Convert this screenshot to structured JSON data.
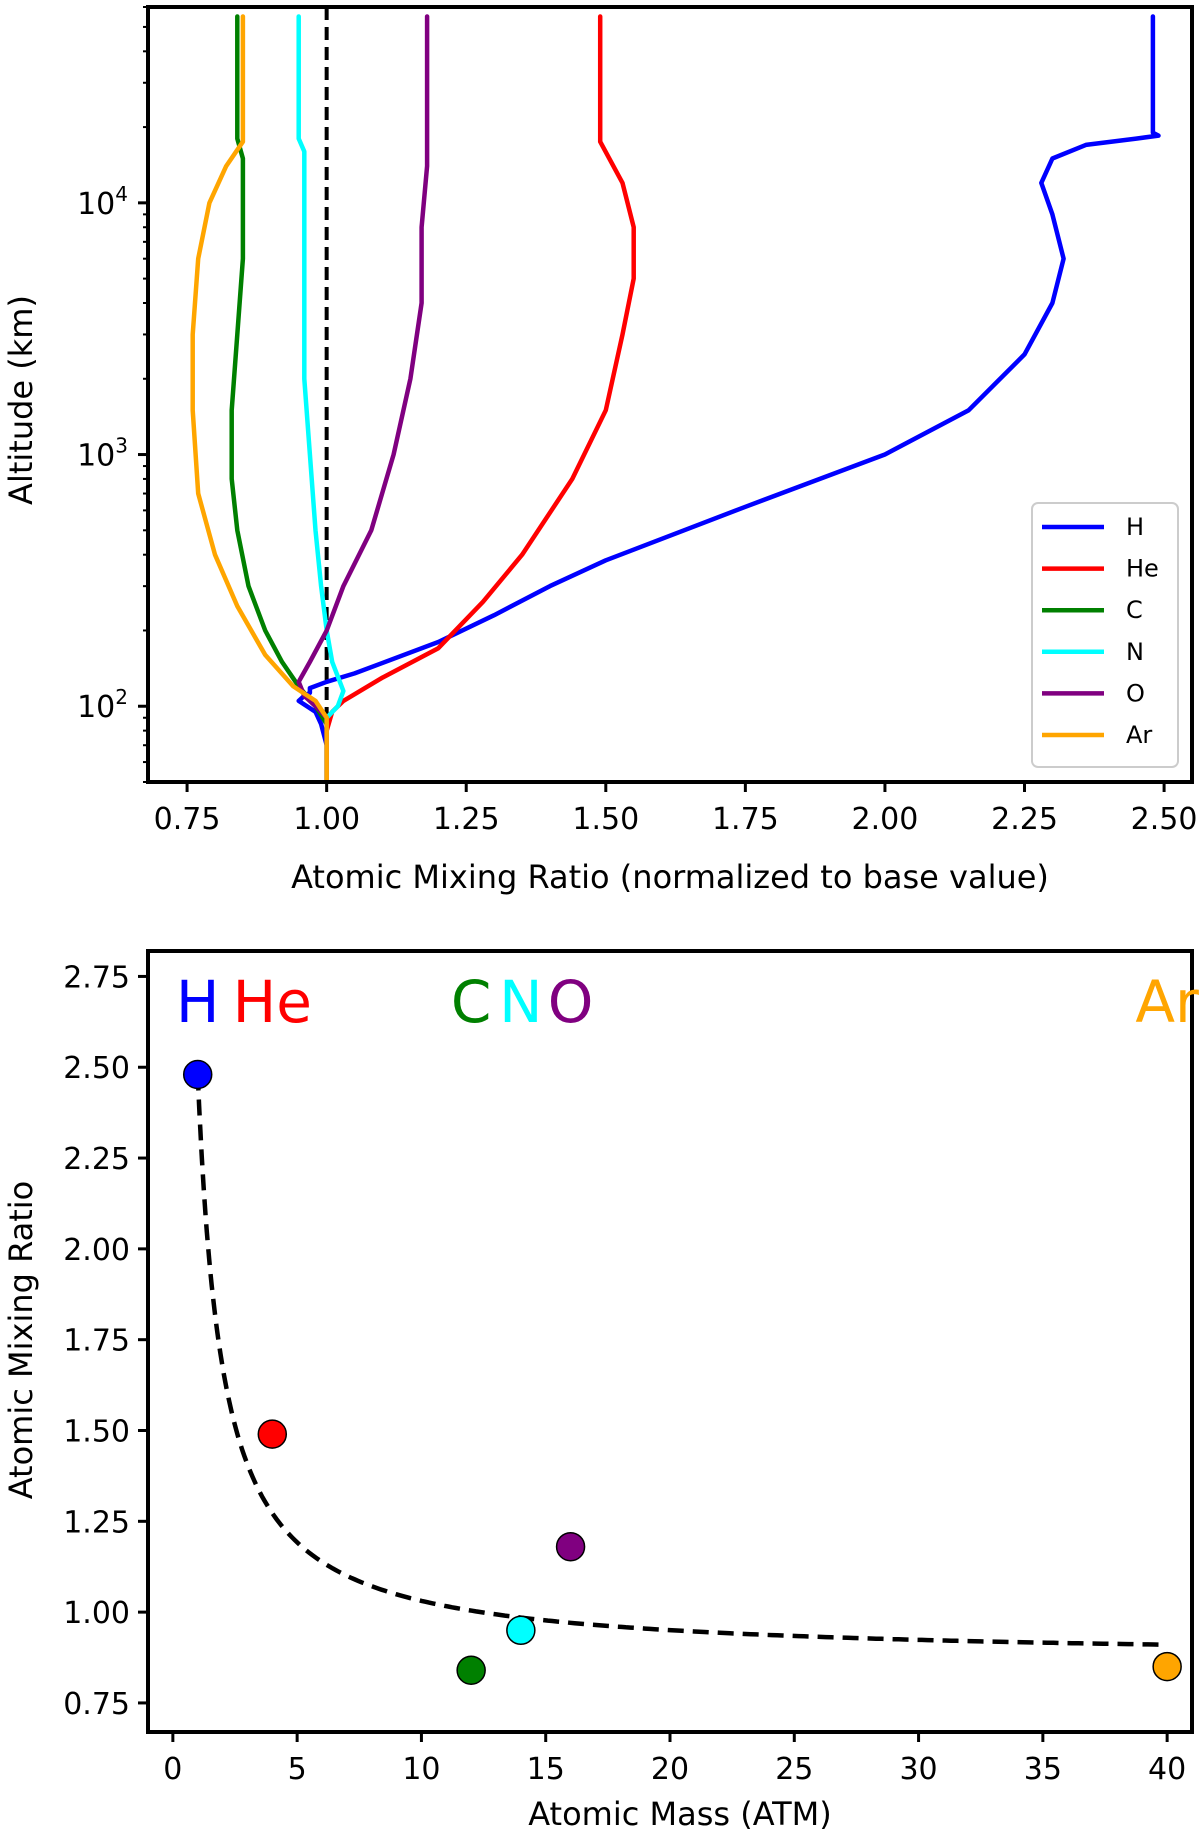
{
  "chart_data": [
    {
      "type": "line",
      "xlabel": "Atomic Mixing Ratio (normalized to base value)",
      "ylabel": "Altitude (km)",
      "xlim": [
        0.68,
        2.55
      ],
      "ylim": [
        50,
        60000
      ],
      "yscale": "log",
      "xticks": [
        "0.75",
        "1.00",
        "1.25",
        "1.50",
        "1.75",
        "2.00",
        "2.25",
        "2.50"
      ],
      "xtick_values": [
        0.75,
        1.0,
        1.25,
        1.5,
        1.75,
        2.0,
        2.25,
        2.5
      ],
      "yticks": [
        {
          "value": 100,
          "base": "10",
          "exp": "2"
        },
        {
          "value": 1000,
          "base": "10",
          "exp": "3"
        },
        {
          "value": 10000,
          "base": "10",
          "exp": "4"
        }
      ],
      "legend_position": "lower-right",
      "reference_line": {
        "x": 1.0,
        "style": "dashed",
        "color": "#000000"
      },
      "series": [
        {
          "name": "H",
          "color": "#0000ff",
          "x": [
            1.0,
            1.0,
            0.99,
            0.98,
            0.95,
            0.96,
            0.97,
            0.97,
            1.0,
            1.05,
            1.2,
            1.3,
            1.4,
            1.5,
            1.75,
            2.0,
            2.15,
            2.25,
            2.3,
            2.32,
            2.3,
            2.28,
            2.3,
            2.36,
            2.45,
            2.49,
            2.48,
            2.48
          ],
          "y": [
            50,
            70,
            85,
            95,
            105,
            110,
            113,
            118,
            125,
            135,
            180,
            230,
            300,
            380,
            620,
            1000,
            1500,
            2500,
            4000,
            6000,
            9000,
            12000,
            15000,
            17000,
            18000,
            18500,
            19000,
            55000
          ]
        },
        {
          "name": "He",
          "color": "#ff0000",
          "x": [
            1.0,
            1.0,
            1.01,
            1.03,
            1.1,
            1.2,
            1.28,
            1.35,
            1.44,
            1.5,
            1.53,
            1.55,
            1.55,
            1.53,
            1.49,
            1.49,
            1.49
          ],
          "y": [
            50,
            80,
            95,
            105,
            130,
            170,
            260,
            400,
            800,
            1500,
            3000,
            5000,
            8000,
            12000,
            17500,
            19000,
            55000
          ]
        },
        {
          "name": "C",
          "color": "#008000",
          "x": [
            1.0,
            1.0,
            0.98,
            0.95,
            0.92,
            0.89,
            0.86,
            0.84,
            0.83,
            0.83,
            0.84,
            0.85,
            0.85,
            0.85,
            0.84,
            0.84
          ],
          "y": [
            50,
            85,
            100,
            120,
            150,
            200,
            300,
            500,
            800,
            1500,
            3000,
            6000,
            10000,
            15000,
            18000,
            55000
          ]
        },
        {
          "name": "N",
          "color": "#00ffff",
          "x": [
            1.0,
            1.0,
            1.02,
            1.03,
            1.01,
            1.0,
            0.99,
            0.98,
            0.97,
            0.96,
            0.96,
            0.96,
            0.96,
            0.95,
            0.95
          ],
          "y": [
            50,
            90,
            100,
            115,
            150,
            200,
            300,
            500,
            1000,
            2000,
            5000,
            10000,
            16000,
            18000,
            55000
          ]
        },
        {
          "name": "O",
          "color": "#800080",
          "x": [
            1.0,
            1.0,
            0.98,
            0.96,
            0.95,
            0.97,
            1.0,
            1.03,
            1.08,
            1.12,
            1.15,
            1.17,
            1.17,
            1.18,
            1.18,
            1.18
          ],
          "y": [
            50,
            90,
            100,
            110,
            125,
            150,
            200,
            300,
            500,
            1000,
            2000,
            4000,
            8000,
            14000,
            18000,
            55000
          ]
        },
        {
          "name": "Ar",
          "color": "#ffa500",
          "x": [
            1.0,
            1.0,
            0.98,
            0.94,
            0.89,
            0.84,
            0.8,
            0.77,
            0.76,
            0.76,
            0.77,
            0.79,
            0.82,
            0.85,
            0.85
          ],
          "y": [
            50,
            90,
            105,
            120,
            160,
            250,
            400,
            700,
            1500,
            3000,
            6000,
            10000,
            14000,
            17500,
            55000
          ]
        }
      ]
    },
    {
      "type": "scatter",
      "xlabel": "Atomic Mass (ATM)",
      "ylabel": "Atomic Mixing Ratio",
      "xlim": [
        -1,
        41
      ],
      "ylim": [
        0.67,
        2.82
      ],
      "xticks": [
        "0",
        "5",
        "10",
        "15",
        "20",
        "25",
        "30",
        "35",
        "40"
      ],
      "xtick_values": [
        0,
        5,
        10,
        15,
        20,
        25,
        30,
        35,
        40
      ],
      "yticks": [
        "0.75",
        "1.00",
        "1.25",
        "1.50",
        "1.75",
        "2.00",
        "2.25",
        "2.50",
        "2.75"
      ],
      "ytick_values": [
        0.75,
        1.0,
        1.25,
        1.5,
        1.75,
        2.0,
        2.25,
        2.5,
        2.75
      ],
      "points": [
        {
          "label": "H",
          "color": "#0000ff",
          "x": 1,
          "y": 2.48
        },
        {
          "label": "He",
          "color": "#ff0000",
          "x": 4,
          "y": 1.49
        },
        {
          "label": "C",
          "color": "#008000",
          "x": 12,
          "y": 0.84
        },
        {
          "label": "N",
          "color": "#00ffff",
          "x": 14,
          "y": 0.95
        },
        {
          "label": "O",
          "color": "#800080",
          "x": 16,
          "y": 1.18
        },
        {
          "label": "Ar",
          "color": "#ffa500",
          "x": 40,
          "y": 0.85
        }
      ],
      "fit_curve": {
        "style": "dashed",
        "color": "#000000",
        "x_range": [
          1,
          40
        ],
        "form": "a/x + c",
        "a": 1.61,
        "c": 0.87
      }
    }
  ]
}
